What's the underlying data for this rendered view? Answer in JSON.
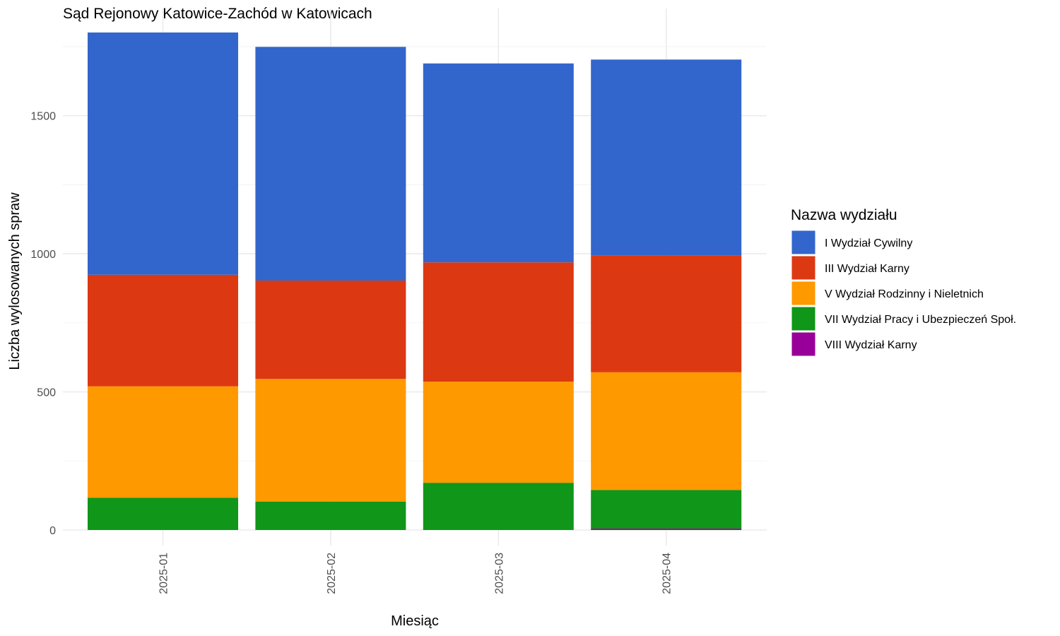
{
  "chart_data": {
    "type": "bar",
    "stacked": true,
    "title": "Sąd Rejonowy Katowice-Zachód w Katowicach",
    "xlabel": "Miesiąc",
    "ylabel": "Liczba wylosowanych spraw",
    "categories": [
      "2025-01",
      "2025-02",
      "2025-03",
      "2025-04"
    ],
    "ylim": [
      0,
      1800
    ],
    "yticks": [
      0,
      500,
      1000,
      1500
    ],
    "grid": true,
    "legend": {
      "title": "Nazwa wydziału",
      "position": "right"
    },
    "series": [
      {
        "name": "I Wydział Cywilny",
        "color": "#3366CC",
        "values": [
          877,
          846,
          720,
          710
        ]
      },
      {
        "name": "III Wydział Karny",
        "color": "#DC3912",
        "values": [
          404,
          356,
          432,
          422
        ]
      },
      {
        "name": "V Wydział Rodzinny i Nieletnich",
        "color": "#FF9900",
        "values": [
          403,
          444,
          366,
          426
        ]
      },
      {
        "name": "VII Wydział Pracy i Ubezpieczeń Społ.",
        "color": "#109618",
        "values": [
          117,
          103,
          171,
          140
        ]
      },
      {
        "name": "VIII Wydział Karny",
        "color": "#990099",
        "values": [
          0,
          0,
          0,
          5
        ]
      }
    ]
  }
}
